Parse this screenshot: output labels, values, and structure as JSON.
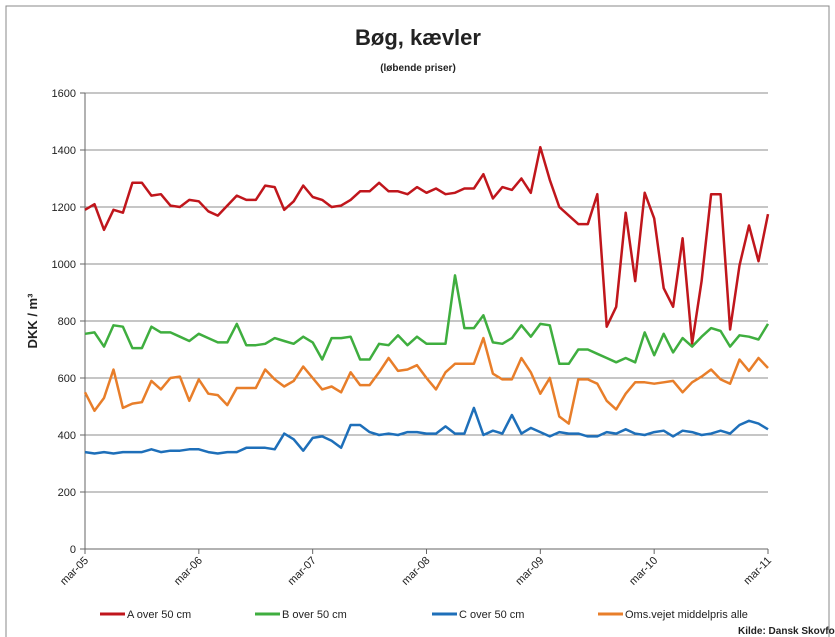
{
  "chart_data": {
    "type": "line",
    "title": "Bøg, kævler",
    "subtitle": "(løbende priser)",
    "y_label": "DKK / m³",
    "source": "Kilde: Dansk Skovforening",
    "categories": [
      "mar-05",
      null,
      null,
      null,
      null,
      null,
      null,
      null,
      null,
      null,
      null,
      null,
      "mar-06",
      null,
      null,
      null,
      null,
      null,
      null,
      null,
      null,
      null,
      null,
      null,
      "mar-07",
      null,
      null,
      null,
      null,
      null,
      null,
      null,
      null,
      null,
      null,
      null,
      "mar-08",
      null,
      null,
      null,
      null,
      null,
      null,
      null,
      null,
      null,
      null,
      null,
      "mar-09",
      null,
      null,
      null,
      null,
      null,
      null,
      null,
      null,
      null,
      null,
      null,
      "mar-10",
      null,
      null,
      null,
      null,
      null,
      null,
      null,
      null,
      null,
      null,
      null,
      "mar-11"
    ],
    "ylim": [
      0,
      1600
    ],
    "yticks": [
      0,
      200,
      400,
      600,
      800,
      1000,
      1200,
      1400,
      1600
    ],
    "grid": true,
    "legend": "bottom",
    "series": [
      {
        "name": "A over 50 cm",
        "color": "#c0161c",
        "values": [
          1190,
          1210,
          1120,
          1190,
          1180,
          1285,
          1285,
          1240,
          1245,
          1205,
          1200,
          1225,
          1220,
          1185,
          1170,
          1205,
          1240,
          1225,
          1225,
          1275,
          1270,
          1190,
          1220,
          1275,
          1235,
          1225,
          1200,
          1205,
          1225,
          1255,
          1255,
          1285,
          1255,
          1255,
          1245,
          1270,
          1250,
          1265,
          1245,
          1250,
          1265,
          1265,
          1315,
          1230,
          1270,
          1260,
          1300,
          1250,
          1410,
          1295,
          1200,
          1170,
          1140,
          1140,
          1245,
          780,
          850,
          1180,
          940,
          1250,
          1160,
          915,
          850,
          1090,
          720,
          940,
          1245,
          1245,
          770,
          995,
          1135,
          1010,
          1175
        ]
      },
      {
        "name": "B over 50 cm",
        "color": "#3fae3f",
        "values": [
          755,
          760,
          710,
          785,
          780,
          705,
          705,
          780,
          760,
          760,
          745,
          730,
          755,
          740,
          725,
          725,
          790,
          715,
          715,
          720,
          740,
          730,
          720,
          745,
          725,
          665,
          740,
          740,
          745,
          665,
          665,
          720,
          715,
          750,
          715,
          745,
          720,
          720,
          720,
          960,
          775,
          775,
          820,
          725,
          720,
          740,
          785,
          745,
          790,
          785,
          650,
          650,
          700,
          700,
          685,
          670,
          655,
          670,
          655,
          760,
          680,
          755,
          690,
          740,
          710,
          745,
          775,
          765,
          710,
          750,
          745,
          735,
          790
        ]
      },
      {
        "name": "C over 50 cm",
        "color": "#1e6fb9",
        "values": [
          340,
          335,
          340,
          335,
          340,
          340,
          340,
          350,
          340,
          345,
          345,
          350,
          350,
          340,
          335,
          340,
          340,
          355,
          355,
          355,
          350,
          405,
          385,
          345,
          390,
          395,
          380,
          355,
          435,
          435,
          410,
          400,
          405,
          400,
          410,
          410,
          405,
          405,
          430,
          405,
          405,
          495,
          400,
          415,
          405,
          470,
          405,
          425,
          410,
          395,
          410,
          405,
          405,
          395,
          395,
          410,
          405,
          420,
          405,
          400,
          410,
          415,
          395,
          415,
          410,
          400,
          405,
          415,
          405,
          435,
          450,
          440,
          420
        ]
      },
      {
        "name": "Oms.vejet middelpris alle",
        "color": "#e87e2a",
        "values": [
          550,
          485,
          530,
          630,
          495,
          510,
          515,
          590,
          560,
          600,
          605,
          520,
          595,
          545,
          540,
          505,
          565,
          565,
          565,
          630,
          595,
          570,
          590,
          640,
          600,
          560,
          570,
          550,
          620,
          575,
          575,
          620,
          670,
          625,
          630,
          645,
          600,
          560,
          620,
          650,
          650,
          650,
          740,
          615,
          595,
          595,
          670,
          620,
          545,
          600,
          465,
          440,
          595,
          595,
          580,
          520,
          490,
          545,
          585,
          585,
          580,
          585,
          590,
          550,
          585,
          605,
          630,
          595,
          580,
          665,
          625,
          670,
          635
        ]
      }
    ]
  }
}
